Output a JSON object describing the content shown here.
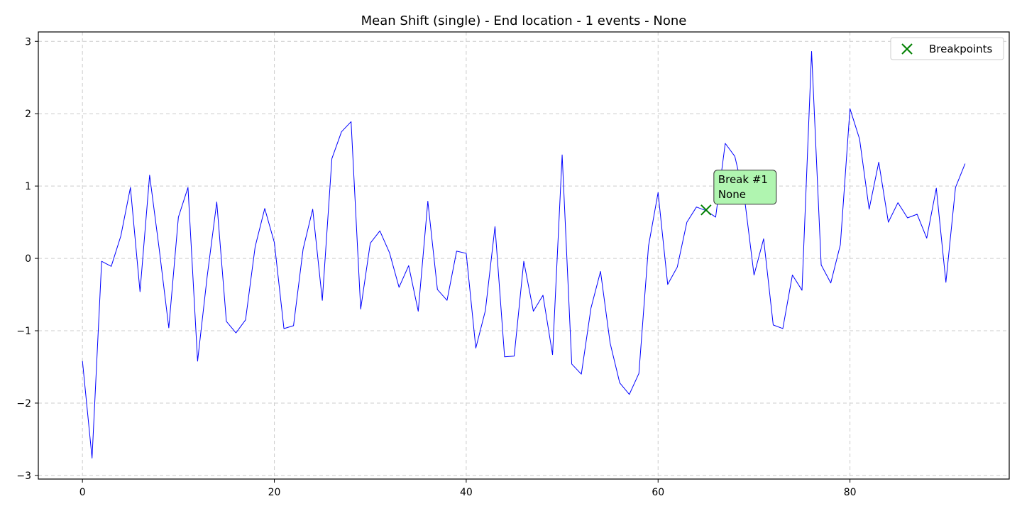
{
  "chart_data": {
    "type": "line",
    "title": "Mean Shift (single) - End location - 1 events - None",
    "xlabel": "",
    "ylabel": "",
    "xlim": [
      -4.6,
      96.6
    ],
    "ylim": [
      -3.05,
      3.13
    ],
    "grid": true,
    "xticks": [
      0,
      20,
      40,
      60,
      80
    ],
    "xtick_labels": [
      "0",
      "20",
      "40",
      "60",
      "80"
    ],
    "yticks": [
      3,
      2,
      1,
      0,
      -1,
      -2,
      -3
    ],
    "ytick_labels": [
      "3",
      "2",
      "1",
      "0",
      "−1",
      "−2",
      "−3"
    ],
    "series": [
      {
        "color": "#0000ff",
        "x": [
          0,
          1,
          2,
          3,
          4,
          5,
          6,
          7,
          8,
          9,
          10,
          11,
          12,
          13,
          14,
          15,
          16,
          17,
          18,
          19,
          20,
          21,
          22,
          23,
          24,
          25,
          26,
          27,
          28,
          29,
          30,
          31,
          32,
          33,
          34,
          35,
          36,
          37,
          38,
          39,
          40,
          41,
          42,
          43,
          44,
          45,
          46,
          47,
          48,
          49,
          50,
          51,
          52,
          53,
          54,
          55,
          56,
          57,
          58,
          59,
          60,
          61,
          62,
          63,
          64,
          65,
          66,
          67,
          68,
          69,
          70,
          71,
          72,
          73,
          74,
          75,
          76,
          77,
          78,
          79,
          80,
          81,
          82,
          83,
          84,
          85,
          86,
          87,
          88,
          89,
          90,
          91,
          92
        ],
        "values": [
          -1.42,
          -2.76,
          -0.04,
          -0.11,
          0.31,
          0.98,
          -0.46,
          1.15,
          0.13,
          -0.96,
          0.57,
          0.98,
          -1.42,
          -0.25,
          0.78,
          -0.87,
          -1.03,
          -0.85,
          0.16,
          0.69,
          0.22,
          -0.97,
          -0.93,
          0.13,
          0.68,
          -0.58,
          1.38,
          1.75,
          1.89,
          -0.7,
          0.21,
          0.38,
          0.08,
          -0.4,
          -0.1,
          -0.73,
          0.79,
          -0.43,
          -0.58,
          0.1,
          0.07,
          -1.24,
          -0.72,
          0.44,
          -1.36,
          -1.35,
          -0.04,
          -0.73,
          -0.51,
          -1.33,
          1.43,
          -1.46,
          -1.6,
          -0.69,
          -0.18,
          -1.17,
          -1.72,
          -1.88,
          -1.59,
          0.17,
          0.91,
          -0.36,
          -0.12,
          0.5,
          0.71,
          0.66,
          0.57,
          1.59,
          1.41,
          0.84,
          -0.23,
          0.27,
          -0.92,
          -0.97,
          -0.23,
          -0.44,
          2.86,
          -0.09,
          -0.34,
          0.19,
          2.07,
          1.65,
          0.68,
          1.33,
          0.5,
          0.77,
          0.56,
          0.61,
          0.28,
          0.97,
          -0.33,
          0.98,
          1.31
        ]
      }
    ],
    "breakpoints": [
      {
        "x": 65,
        "y": 0.67,
        "label_line1": "Break #1",
        "label_line2": "None",
        "color": "#008000"
      }
    ],
    "legend": {
      "placement": "top-right",
      "entries": [
        {
          "label": "Breakpoints",
          "marker": "x",
          "color": "#008000"
        }
      ]
    },
    "annotation_style": {
      "fill": "#b0f5b0",
      "stroke": "#333333"
    }
  }
}
